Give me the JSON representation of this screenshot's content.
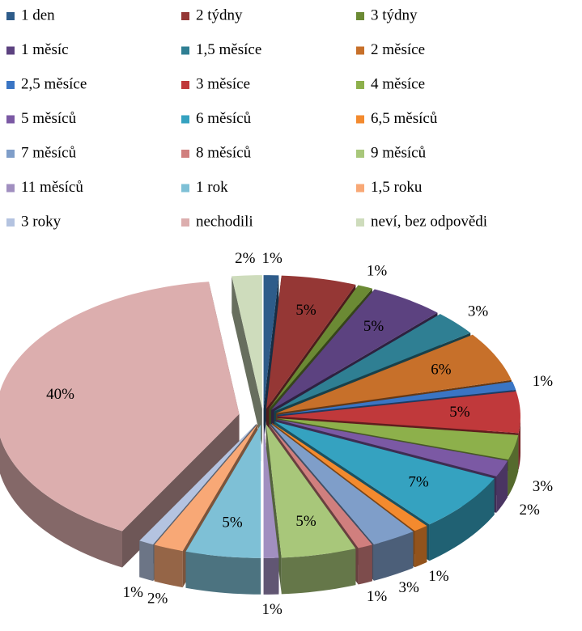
{
  "chart_data": {
    "type": "pie",
    "categories": [
      "1 den",
      "2 týdny",
      "3 týdny",
      "1 měsíc",
      "1,5 měsíce",
      "2 měsíce",
      "2,5 měsíce",
      "3 měsíce",
      "4 měsíce",
      "5 měsíců",
      "6 měsíců",
      "6,5 měsíců",
      "7 měsíců",
      "8 měsíců",
      "9 měsíců",
      "11 měsíců",
      "1 rok",
      "1,5 roku",
      "3 roky",
      "nechodili",
      "neví, bez odpovědi"
    ],
    "values": [
      1,
      5,
      1,
      5,
      3,
      6,
      1,
      5,
      3,
      2,
      7,
      1,
      3,
      1,
      5,
      1,
      5,
      2,
      1,
      40,
      2
    ],
    "value_labels": [
      "1%",
      "5%",
      "1%",
      "5%",
      "3%",
      "6%",
      "1%",
      "5%",
      "3%",
      "2%",
      "7%",
      "1%",
      "3%",
      "1%",
      "5%",
      "1%",
      "5%",
      "2%",
      "1%",
      "40%",
      "2%"
    ],
    "colors": [
      "#2e5c8a",
      "#953735",
      "#6b8a34",
      "#5c4280",
      "#2f7f93",
      "#c7702a",
      "#3a75c4",
      "#c0393b",
      "#8db04b",
      "#7b59a4",
      "#35a2c0",
      "#f38a2e",
      "#7f9ec9",
      "#d07f7e",
      "#a8c77a",
      "#a18fc0",
      "#7ec0d6",
      "#f8a876",
      "#b4c3e0",
      "#dcaeae",
      "#cedcbc"
    ],
    "legend": "top"
  }
}
